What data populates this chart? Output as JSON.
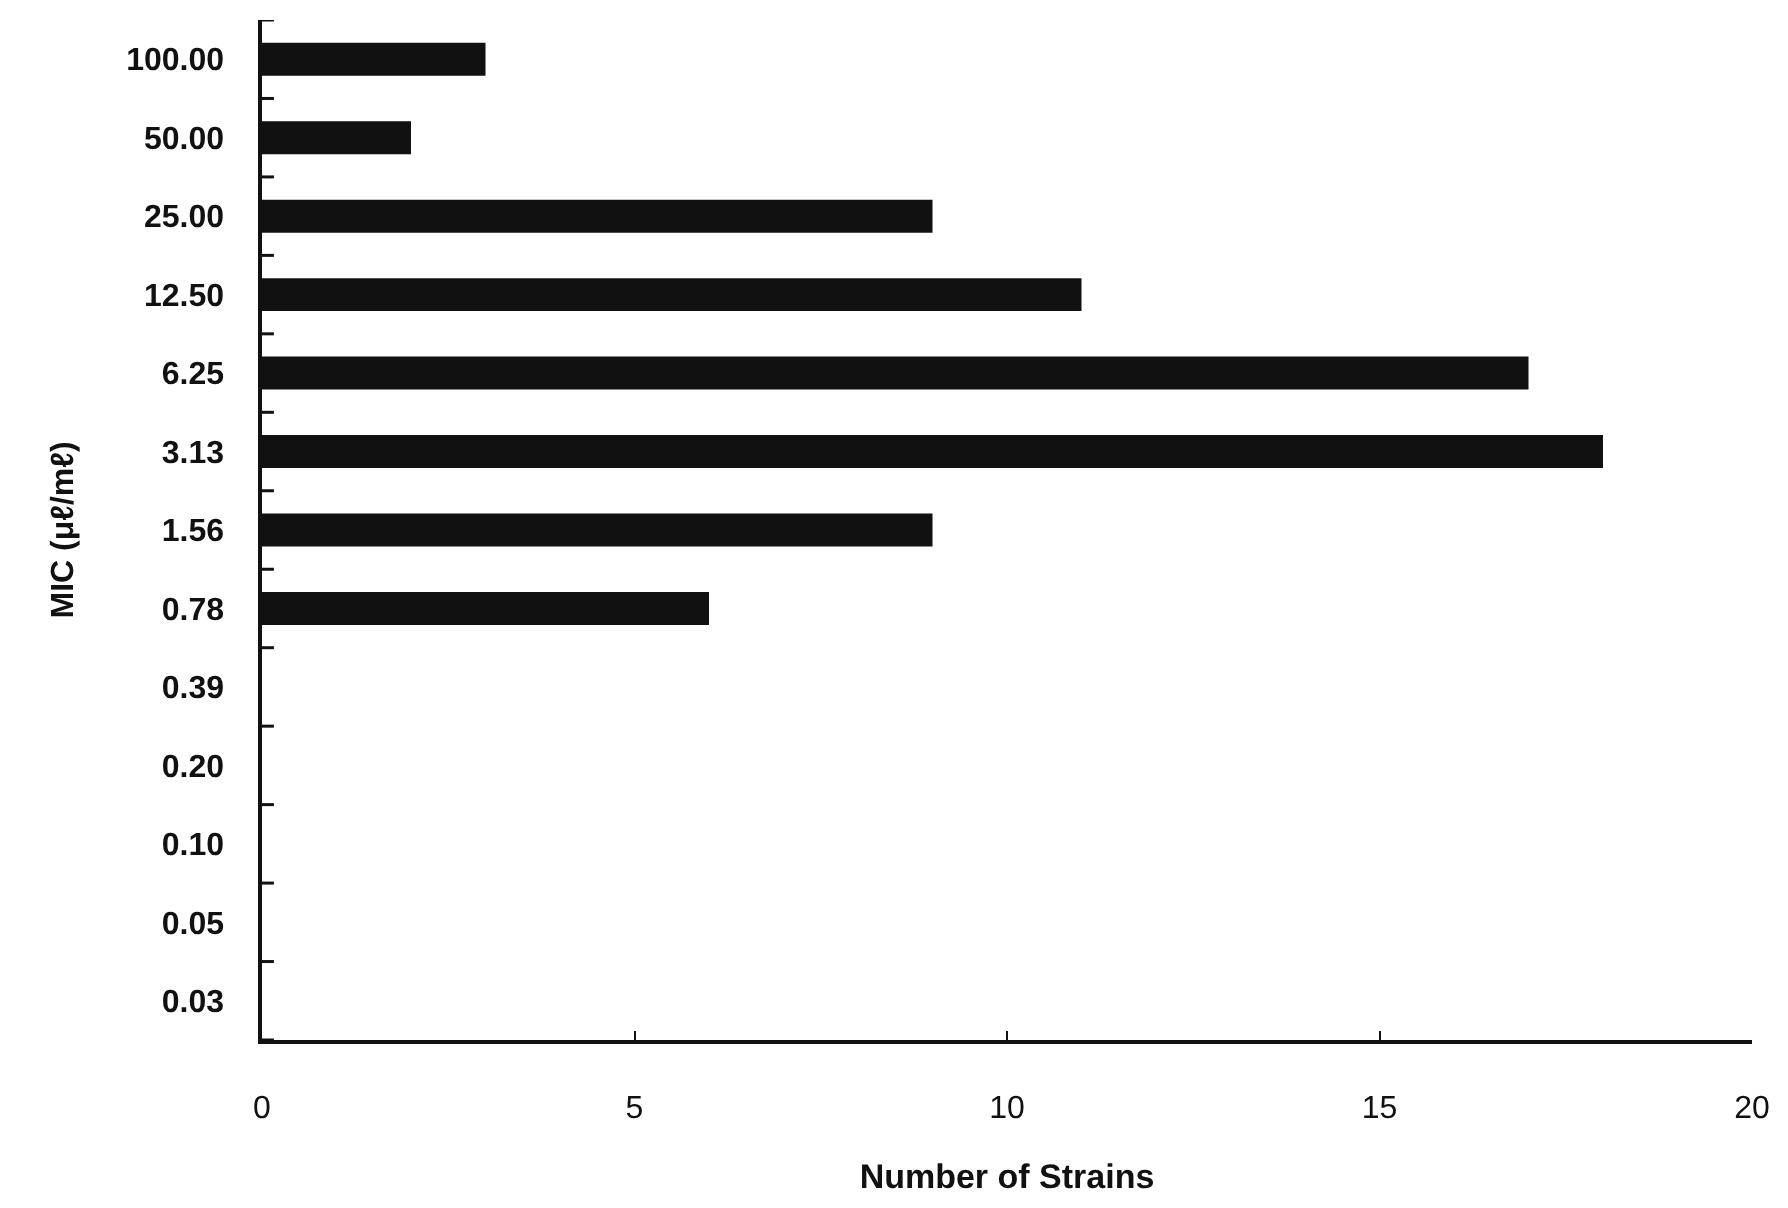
{
  "chart_data": {
    "type": "bar",
    "orientation": "horizontal",
    "categories": [
      "100.00",
      "50.00",
      "25.00",
      "12.50",
      "6.25",
      "3.13",
      "1.56",
      "0.78",
      "0.39",
      "0.20",
      "0.10",
      "0.05",
      "0.03"
    ],
    "values": [
      3,
      2,
      9,
      11,
      17,
      18,
      9,
      6,
      0,
      0,
      0,
      0,
      0
    ],
    "color": "#111111",
    "xlim": [
      0,
      20
    ],
    "xticks": [
      0,
      5,
      10,
      15,
      20
    ],
    "xlabel": "Number of Strains",
    "ylabel": "MIC (μℓ/mℓ)"
  }
}
